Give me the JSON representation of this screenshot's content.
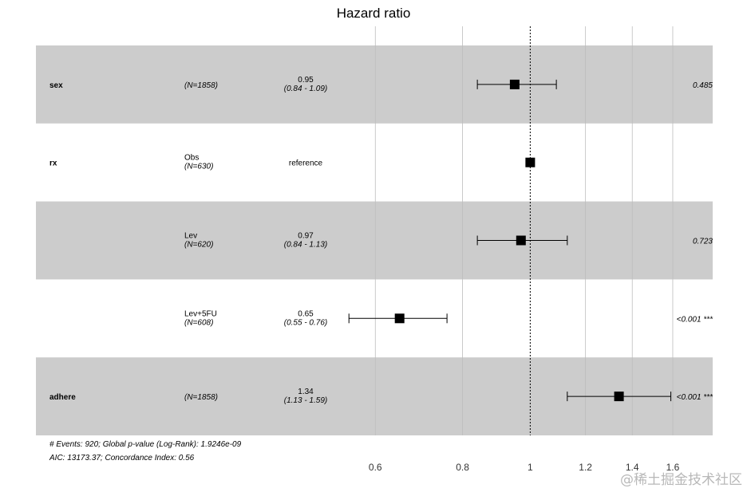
{
  "chart_data": {
    "type": "forest",
    "title": "Hazard ratio",
    "x_scale": "log",
    "xlim": [
      0.5,
      1.7
    ],
    "reference_line": 1,
    "x_ticks": [
      0.6,
      0.8,
      1,
      1.2,
      1.4,
      1.6
    ],
    "x_tick_labels": [
      "0.6",
      "0.8",
      "1",
      "1.2",
      "1.4",
      "1.6"
    ],
    "rows": [
      {
        "variable": "sex",
        "level": "",
        "n_label": "(N=1858)",
        "hr_label": "0.95",
        "ci_label": "(0.84 - 1.09)",
        "p_label": "0.485",
        "hr": 0.95,
        "ci_low": 0.84,
        "ci_high": 1.09,
        "shaded": true
      },
      {
        "variable": "rx",
        "level": "Obs",
        "n_label": "(N=630)",
        "hr_label": "reference",
        "ci_label": "",
        "p_label": "",
        "hr": 1,
        "ci_low": null,
        "ci_high": null,
        "shaded": false
      },
      {
        "variable": "",
        "level": "Lev",
        "n_label": "(N=620)",
        "hr_label": "0.97",
        "ci_label": "(0.84 - 1.13)",
        "p_label": "0.723",
        "hr": 0.97,
        "ci_low": 0.84,
        "ci_high": 1.13,
        "shaded": true
      },
      {
        "variable": "",
        "level": "Lev+5FU",
        "n_label": "(N=608)",
        "hr_label": "0.65",
        "ci_label": "(0.55 - 0.76)",
        "p_label": "<0.001 ***",
        "hr": 0.65,
        "ci_low": 0.55,
        "ci_high": 0.76,
        "shaded": false
      },
      {
        "variable": "adhere",
        "level": "",
        "n_label": "(N=1858)",
        "hr_label": "1.34",
        "ci_label": "(1.13 - 1.59)",
        "p_label": "<0.001 ***",
        "hr": 1.34,
        "ci_low": 1.13,
        "ci_high": 1.59,
        "shaded": true
      }
    ],
    "footnote": [
      "# Events: 920; Global p-value (Log-Rank): 1.9246e-09",
      "AIC: 13173.37; Concordance Index: 0.56"
    ]
  },
  "watermark": "@稀土掘金技术社区",
  "colors": {
    "band": "#cccccc",
    "grid": "#bdbdbd",
    "point": "#000000"
  }
}
